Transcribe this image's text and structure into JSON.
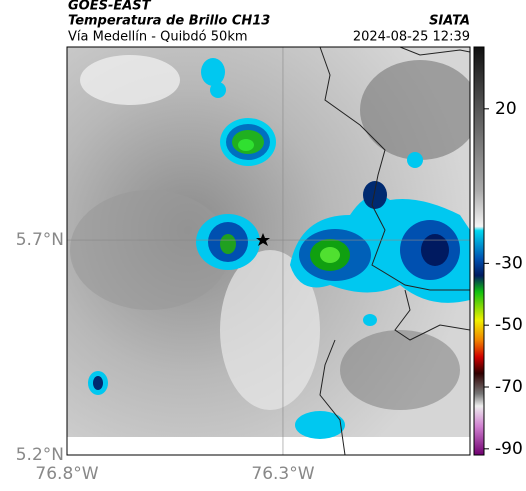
{
  "header": {
    "satellite": "GOES-EAST",
    "product": "Temperatura de Brillo CH13",
    "source": "SIATA",
    "route": "Vía Medellín - Quibdó 50km",
    "datetime": "2024-08-25 12:39"
  },
  "map": {
    "xlim": [
      -76.8,
      -75.867
    ],
    "ylim": [
      5.2,
      6.149
    ],
    "xticks": [
      {
        "value": -76.8,
        "label": "76.8°W"
      },
      {
        "value": -76.3,
        "label": "76.3°W"
      }
    ],
    "yticks": [
      {
        "value": 5.2,
        "label": "5.2°N"
      },
      {
        "value": 5.7,
        "label": "5.7°N"
      }
    ],
    "grid": true
  },
  "colorbar": {
    "range": [
      40,
      -92
    ],
    "ticks": [
      20,
      -30,
      -50,
      -70,
      -90
    ]
  }
}
